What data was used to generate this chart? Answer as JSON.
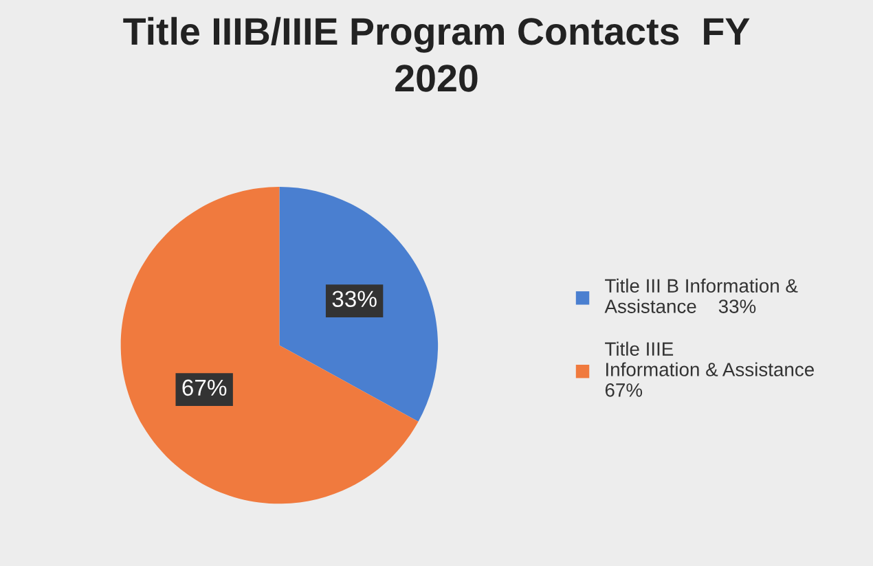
{
  "chart_data": {
    "type": "pie",
    "title": "Title IIIB/IIIE Program Contacts  FY\n2020",
    "categories": [
      "Title III B Information &\nAssistance    33%",
      "Title IIIE\nInformation & Assistance\n67%"
    ],
    "values": [
      33,
      67
    ],
    "colors": [
      "#4a7fd0",
      "#f07a3e"
    ],
    "value_labels": [
      "33%",
      "67%"
    ],
    "legend": "right"
  }
}
